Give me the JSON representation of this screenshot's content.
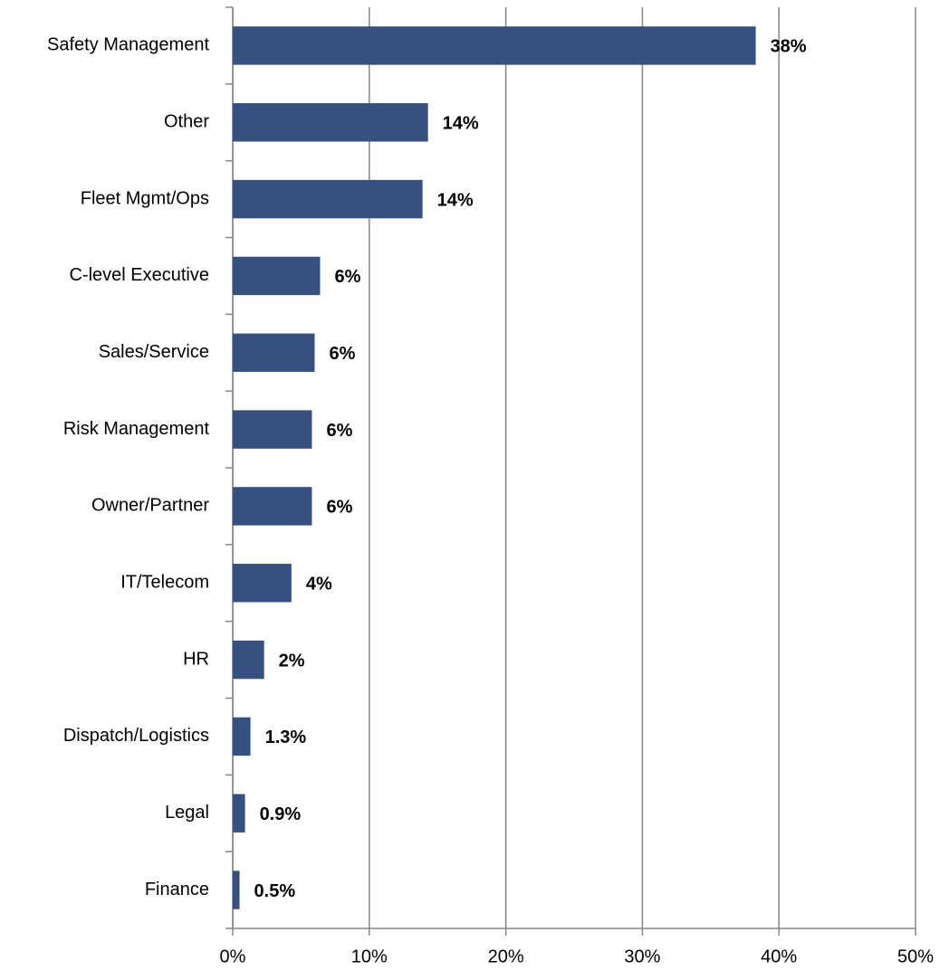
{
  "chart_data": {
    "type": "bar",
    "orientation": "horizontal",
    "categories": [
      "Safety Management",
      "Other",
      "Fleet Mgmt/Ops",
      "C-level Executive",
      "Sales/Service",
      "Risk Management",
      "Owner/Partner",
      "IT/Telecom",
      "HR",
      "Dispatch/Logistics",
      "Legal",
      "Finance"
    ],
    "values": [
      38.3,
      14.3,
      13.9,
      6.4,
      6.0,
      5.8,
      5.8,
      4.3,
      2.3,
      1.3,
      0.9,
      0.5
    ],
    "value_labels": [
      "38%",
      "14%",
      "14%",
      "6%",
      "6%",
      "6%",
      "6%",
      "4%",
      "2%",
      "1.3%",
      "0.9%",
      "0.5%"
    ],
    "color": "#36517f",
    "xlim": [
      0,
      50
    ],
    "xticks": [
      {
        "value": 0,
        "label": "0%"
      },
      {
        "value": 10,
        "label": "10%"
      },
      {
        "value": 20,
        "label": "20%"
      },
      {
        "value": 30,
        "label": "30%"
      },
      {
        "value": 40,
        "label": "40%"
      },
      {
        "value": 50,
        "label": "50%"
      }
    ],
    "grid": true
  }
}
